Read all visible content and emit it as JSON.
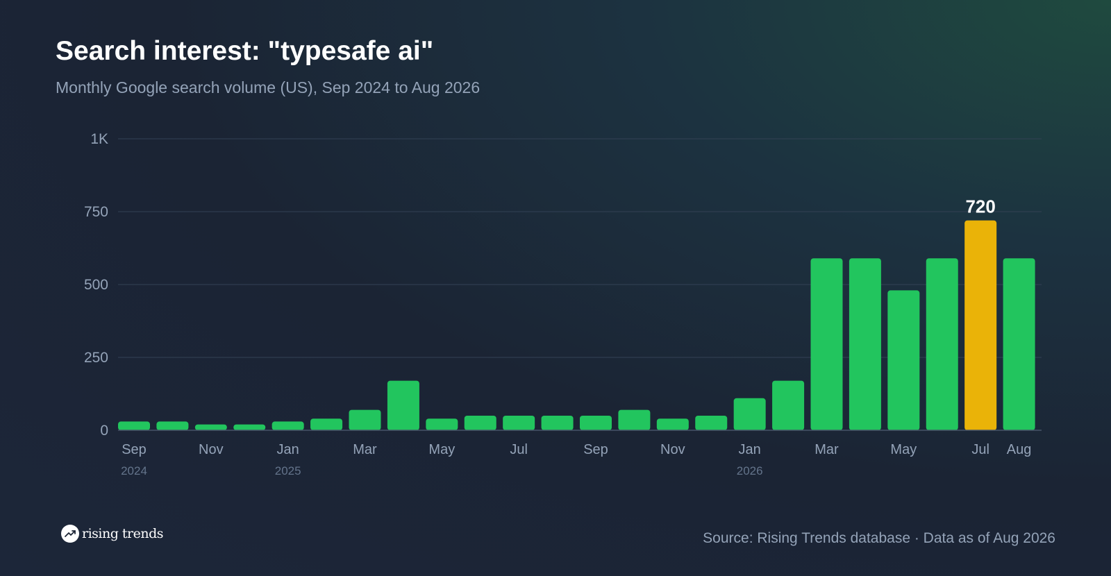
{
  "header": {
    "title": "Search interest: \"typesafe ai\"",
    "subtitle": "Monthly Google search volume (US), Sep 2024 to Aug 2026"
  },
  "footer": {
    "brand": "rising trends",
    "brand_icon": "trending-up-icon",
    "source": "Source: Rising Trends database · Data as of Aug 2026"
  },
  "colors": {
    "bar": "#22c55e",
    "highlight": "#eab308",
    "grid": "#334155",
    "axis_text": "#94a3b8",
    "year_text": "#64748b"
  },
  "chart_data": {
    "type": "bar",
    "categories": [
      "Sep 2024",
      "Oct 2024",
      "Nov 2024",
      "Dec 2024",
      "Jan 2025",
      "Feb 2025",
      "Mar 2025",
      "Apr 2025",
      "May 2025",
      "Jun 2025",
      "Jul 2025",
      "Aug 2025",
      "Sep 2025",
      "Oct 2025",
      "Nov 2025",
      "Dec 2025",
      "Jan 2026",
      "Feb 2026",
      "Mar 2026",
      "Apr 2026",
      "May 2026",
      "Jun 2026",
      "Jul 2026",
      "Aug 2026"
    ],
    "values": [
      30,
      30,
      20,
      20,
      30,
      40,
      70,
      170,
      40,
      50,
      50,
      50,
      50,
      70,
      40,
      50,
      110,
      170,
      590,
      590,
      480,
      590,
      720,
      590
    ],
    "ylim": [
      0,
      1000
    ],
    "yticks": [
      0,
      250,
      500,
      750,
      1000
    ],
    "ytick_labels": [
      "0",
      "250",
      "500",
      "750",
      "1K"
    ],
    "xtick_labels": [
      {
        "index": 0,
        "label": "Sep",
        "year": "2024"
      },
      {
        "index": 2,
        "label": "Nov"
      },
      {
        "index": 4,
        "label": "Jan",
        "year": "2025"
      },
      {
        "index": 6,
        "label": "Mar"
      },
      {
        "index": 8,
        "label": "May"
      },
      {
        "index": 10,
        "label": "Jul"
      },
      {
        "index": 12,
        "label": "Sep"
      },
      {
        "index": 14,
        "label": "Nov"
      },
      {
        "index": 16,
        "label": "Jan",
        "year": "2026"
      },
      {
        "index": 18,
        "label": "Mar"
      },
      {
        "index": 20,
        "label": "May"
      },
      {
        "index": 22,
        "label": "Jul"
      },
      {
        "index": 23,
        "label": "Aug"
      }
    ],
    "highlight_index": 22,
    "highlight_label": "720",
    "grid": true
  }
}
